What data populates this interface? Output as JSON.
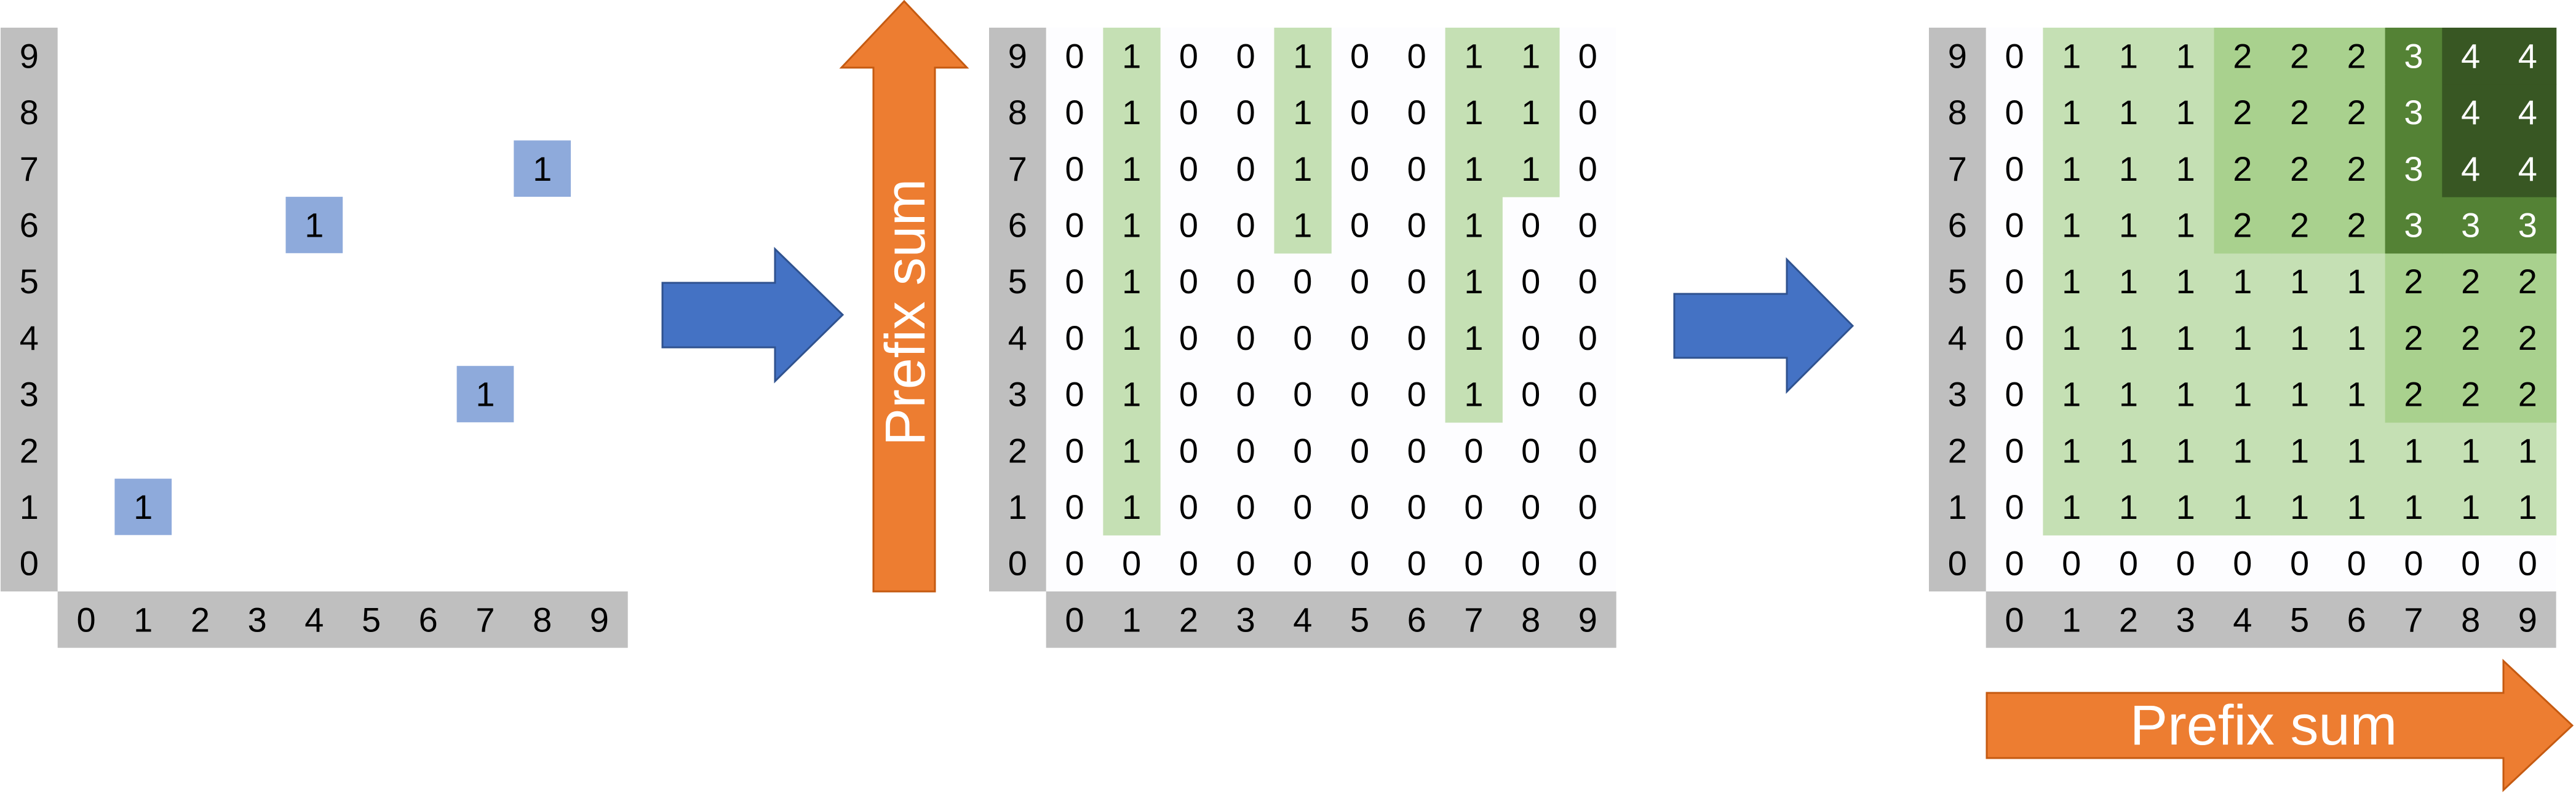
{
  "axis_labels": [
    "0",
    "1",
    "2",
    "3",
    "4",
    "5",
    "6",
    "7",
    "8",
    "9"
  ],
  "colors": {
    "axis_bg": "#bfbfbf",
    "point_fill": "#8eaadb",
    "level1": "#c5e0b4",
    "level2": "#a9d18e",
    "level3": "#548235",
    "level4": "#385723",
    "blue_arrow": "#4472c4",
    "orange_arrow": "#ed7d31",
    "empty_panel": "#fdfdff"
  },
  "panel1_points": [
    {
      "col": 1,
      "row": 1,
      "value": "1"
    },
    {
      "col": 4,
      "row": 6,
      "value": "1"
    },
    {
      "col": 7,
      "row": 3,
      "value": "1"
    },
    {
      "col": 8,
      "row": 7,
      "value": "1"
    }
  ],
  "panel2_grid": [
    [
      "0",
      "0",
      "0",
      "0",
      "0",
      "0",
      "0",
      "0",
      "0",
      "0"
    ],
    [
      "0",
      "1",
      "0",
      "0",
      "0",
      "0",
      "0",
      "0",
      "0",
      "0"
    ],
    [
      "0",
      "1",
      "0",
      "0",
      "0",
      "0",
      "0",
      "0",
      "0",
      "0"
    ],
    [
      "0",
      "1",
      "0",
      "0",
      "0",
      "0",
      "0",
      "1",
      "0",
      "0"
    ],
    [
      "0",
      "1",
      "0",
      "0",
      "0",
      "0",
      "0",
      "1",
      "0",
      "0"
    ],
    [
      "0",
      "1",
      "0",
      "0",
      "0",
      "0",
      "0",
      "1",
      "0",
      "0"
    ],
    [
      "0",
      "1",
      "0",
      "0",
      "1",
      "0",
      "0",
      "1",
      "0",
      "0"
    ],
    [
      "0",
      "1",
      "0",
      "0",
      "1",
      "0",
      "0",
      "1",
      "1",
      "0"
    ],
    [
      "0",
      "1",
      "0",
      "0",
      "1",
      "0",
      "0",
      "1",
      "1",
      "0"
    ],
    [
      "0",
      "1",
      "0",
      "0",
      "1",
      "0",
      "0",
      "1",
      "1",
      "0"
    ]
  ],
  "panel3_grid": [
    [
      "0",
      "0",
      "0",
      "0",
      "0",
      "0",
      "0",
      "0",
      "0",
      "0"
    ],
    [
      "0",
      "1",
      "1",
      "1",
      "1",
      "1",
      "1",
      "1",
      "1",
      "1"
    ],
    [
      "0",
      "1",
      "1",
      "1",
      "1",
      "1",
      "1",
      "1",
      "1",
      "1"
    ],
    [
      "0",
      "1",
      "1",
      "1",
      "1",
      "1",
      "1",
      "2",
      "2",
      "2"
    ],
    [
      "0",
      "1",
      "1",
      "1",
      "1",
      "1",
      "1",
      "2",
      "2",
      "2"
    ],
    [
      "0",
      "1",
      "1",
      "1",
      "1",
      "1",
      "1",
      "2",
      "2",
      "2"
    ],
    [
      "0",
      "1",
      "1",
      "1",
      "2",
      "2",
      "2",
      "3",
      "3",
      "3"
    ],
    [
      "0",
      "1",
      "1",
      "1",
      "2",
      "2",
      "2",
      "3",
      "4",
      "4"
    ],
    [
      "0",
      "1",
      "1",
      "1",
      "2",
      "2",
      "2",
      "3",
      "4",
      "4"
    ],
    [
      "0",
      "1",
      "1",
      "1",
      "2",
      "2",
      "2",
      "3",
      "4",
      "4"
    ]
  ],
  "arrow_labels": {
    "vertical": "Prefix sum",
    "horizontal": "Prefix sum"
  }
}
